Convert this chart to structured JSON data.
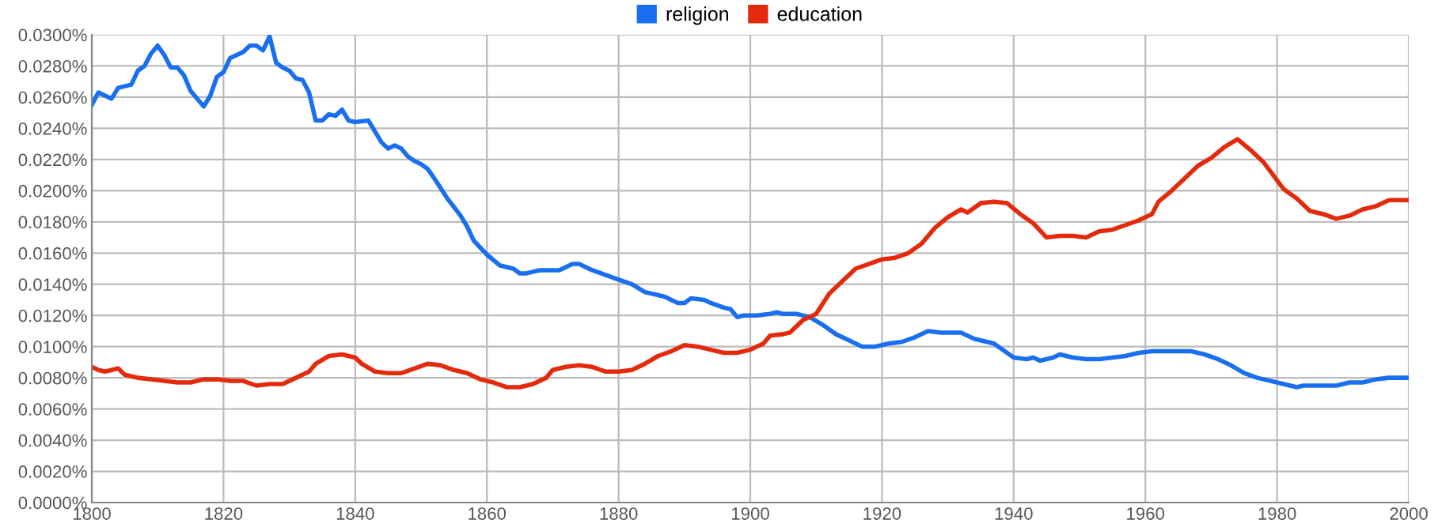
{
  "chart_data": {
    "type": "line",
    "xlim": [
      1800,
      2000
    ],
    "xticks": [
      1800,
      1820,
      1840,
      1860,
      1880,
      1900,
      1920,
      1940,
      1960,
      1980,
      2000
    ],
    "ylim": [
      0,
      0.03
    ],
    "yticks": [
      {
        "value": 0,
        "label": "0.0000%"
      },
      {
        "value": 0.002,
        "label": "0.0020%"
      },
      {
        "value": 0.004,
        "label": "0.0040%"
      },
      {
        "value": 0.006,
        "label": "0.0060%"
      },
      {
        "value": 0.008,
        "label": "0.0080%"
      },
      {
        "value": 0.01,
        "label": "0.0100%"
      },
      {
        "value": 0.012,
        "label": "0.0120%"
      },
      {
        "value": 0.014,
        "label": "0.0140%"
      },
      {
        "value": 0.016,
        "label": "0.0160%"
      },
      {
        "value": 0.018,
        "label": "0.0180%"
      },
      {
        "value": 0.02,
        "label": "0.0200%"
      },
      {
        "value": 0.022,
        "label": "0.0220%"
      },
      {
        "value": 0.024,
        "label": "0.0240%"
      },
      {
        "value": 0.026,
        "label": "0.0260%"
      },
      {
        "value": 0.028,
        "label": "0.0280%"
      },
      {
        "value": 0.03,
        "label": "0.0300%"
      }
    ],
    "grid": true,
    "legend": "top",
    "marker": "none",
    "line_style": "solid",
    "series": [
      {
        "name": "religion",
        "color": "#1a6ff0",
        "x": [
          1800,
          1801,
          1803,
          1804,
          1806,
          1807,
          1808,
          1809,
          1810,
          1811,
          1812,
          1813,
          1814,
          1815,
          1817,
          1818,
          1819,
          1820,
          1821,
          1823,
          1824,
          1825,
          1826,
          1827,
          1828,
          1829,
          1830,
          1831,
          1832,
          1833,
          1834,
          1835,
          1836,
          1837,
          1838,
          1839,
          1840,
          1842,
          1843,
          1844,
          1845,
          1846,
          1847,
          1848,
          1849,
          1850,
          1851,
          1852,
          1854,
          1856,
          1857,
          1858,
          1860,
          1862,
          1864,
          1865,
          1866,
          1868,
          1870,
          1871,
          1873,
          1874,
          1876,
          1878,
          1880,
          1882,
          1884,
          1886,
          1887,
          1889,
          1890,
          1891,
          1893,
          1894,
          1896,
          1897,
          1898,
          1899,
          1901,
          1903,
          1904,
          1905,
          1907,
          1909,
          1911,
          1913,
          1915,
          1917,
          1919,
          1921,
          1923,
          1925,
          1927,
          1929,
          1931,
          1932,
          1934,
          1936,
          1937,
          1939,
          1940,
          1942,
          1943,
          1944,
          1946,
          1947,
          1949,
          1951,
          1953,
          1955,
          1957,
          1959,
          1961,
          1963,
          1965,
          1967,
          1969,
          1971,
          1973,
          1975,
          1977,
          1979,
          1981,
          1983,
          1984,
          1987,
          1989,
          1991,
          1993,
          1995,
          1997,
          2000
        ],
        "values": [
          0.0255,
          0.0263,
          0.0259,
          0.0266,
          0.0268,
          0.0277,
          0.028,
          0.0288,
          0.0293,
          0.0287,
          0.0279,
          0.0279,
          0.0274,
          0.0264,
          0.0254,
          0.0261,
          0.0273,
          0.0276,
          0.0285,
          0.0289,
          0.0293,
          0.0293,
          0.029,
          0.0299,
          0.0282,
          0.0279,
          0.0277,
          0.0272,
          0.0271,
          0.0263,
          0.0245,
          0.0245,
          0.0249,
          0.0248,
          0.0252,
          0.0245,
          0.0244,
          0.0245,
          0.0238,
          0.0231,
          0.0227,
          0.0229,
          0.0227,
          0.0222,
          0.0219,
          0.0217,
          0.0214,
          0.0208,
          0.0195,
          0.0184,
          0.0177,
          0.0168,
          0.0159,
          0.0152,
          0.015,
          0.0147,
          0.0147,
          0.0149,
          0.0149,
          0.0149,
          0.0153,
          0.0153,
          0.0149,
          0.0146,
          0.0143,
          0.014,
          0.0135,
          0.0133,
          0.0132,
          0.0128,
          0.0128,
          0.0131,
          0.013,
          0.0128,
          0.0125,
          0.0124,
          0.0119,
          0.012,
          0.012,
          0.0121,
          0.0122,
          0.0121,
          0.0121,
          0.0119,
          0.0114,
          0.0108,
          0.0104,
          0.01,
          0.01,
          0.0102,
          0.0103,
          0.0106,
          0.011,
          0.0109,
          0.0109,
          0.0109,
          0.0105,
          0.0103,
          0.0102,
          0.0096,
          0.0093,
          0.0092,
          0.0093,
          0.0091,
          0.0093,
          0.0095,
          0.0093,
          0.0092,
          0.0092,
          0.0093,
          0.0094,
          0.0096,
          0.0097,
          0.0097,
          0.0097,
          0.0097,
          0.0095,
          0.0092,
          0.0088,
          0.0083,
          0.008,
          0.0078,
          0.0076,
          0.0074,
          0.0075,
          0.0075,
          0.0075,
          0.0077,
          0.0077,
          0.0079,
          0.008,
          0.008
        ]
      },
      {
        "name": "education",
        "color": "#e42a0c",
        "x": [
          1800,
          1801,
          1802,
          1804,
          1805,
          1807,
          1809,
          1811,
          1813,
          1815,
          1817,
          1819,
          1821,
          1823,
          1825,
          1827,
          1829,
          1831,
          1833,
          1834,
          1836,
          1838,
          1839,
          1840,
          1841,
          1843,
          1845,
          1847,
          1849,
          1851,
          1853,
          1855,
          1857,
          1859,
          1861,
          1863,
          1865,
          1867,
          1869,
          1870,
          1872,
          1874,
          1876,
          1878,
          1880,
          1882,
          1884,
          1886,
          1888,
          1890,
          1892,
          1894,
          1896,
          1898,
          1900,
          1902,
          1903,
          1905,
          1906,
          1908,
          1910,
          1912,
          1914,
          1916,
          1918,
          1920,
          1922,
          1924,
          1926,
          1928,
          1930,
          1932,
          1933,
          1935,
          1937,
          1939,
          1941,
          1943,
          1945,
          1947,
          1949,
          1951,
          1953,
          1955,
          1957,
          1959,
          1961,
          1962,
          1964,
          1966,
          1968,
          1970,
          1972,
          1974,
          1976,
          1978,
          1981,
          1983,
          1985,
          1987,
          1989,
          1991,
          1993,
          1995,
          1997,
          1999,
          2000
        ],
        "values": [
          0.0087,
          0.0085,
          0.0084,
          0.0086,
          0.0082,
          0.008,
          0.0079,
          0.0078,
          0.0077,
          0.0077,
          0.0079,
          0.0079,
          0.0078,
          0.0078,
          0.0075,
          0.0076,
          0.0076,
          0.008,
          0.0084,
          0.0089,
          0.0094,
          0.0095,
          0.0094,
          0.0093,
          0.0089,
          0.0084,
          0.0083,
          0.0083,
          0.0086,
          0.0089,
          0.0088,
          0.0085,
          0.0083,
          0.0079,
          0.0077,
          0.0074,
          0.0074,
          0.0076,
          0.008,
          0.0085,
          0.0087,
          0.0088,
          0.0087,
          0.0084,
          0.0084,
          0.0085,
          0.0089,
          0.0094,
          0.0097,
          0.0101,
          0.01,
          0.0098,
          0.0096,
          0.0096,
          0.0098,
          0.0102,
          0.0107,
          0.0108,
          0.0109,
          0.0117,
          0.0121,
          0.0134,
          0.0142,
          0.015,
          0.0153,
          0.0156,
          0.0157,
          0.016,
          0.0166,
          0.0176,
          0.0183,
          0.0188,
          0.0186,
          0.0192,
          0.0193,
          0.0192,
          0.0185,
          0.0179,
          0.017,
          0.0171,
          0.0171,
          0.017,
          0.0174,
          0.0175,
          0.0178,
          0.0181,
          0.0185,
          0.0193,
          0.02,
          0.0208,
          0.0216,
          0.0221,
          0.0228,
          0.0233,
          0.0226,
          0.0218,
          0.0201,
          0.0195,
          0.0187,
          0.0185,
          0.0182,
          0.0184,
          0.0188,
          0.019,
          0.0194,
          0.0194,
          0.0194
        ]
      }
    ]
  }
}
